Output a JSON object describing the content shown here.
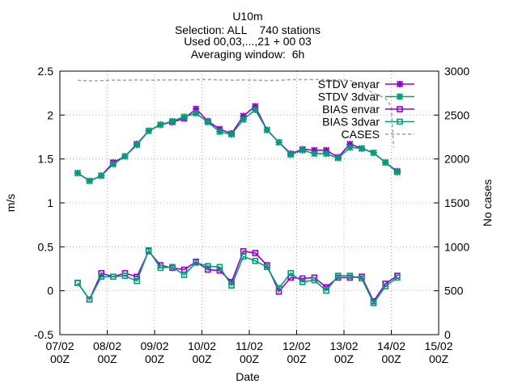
{
  "chart_data": {
    "type": "line",
    "title_lines": [
      "U10m",
      "Selection: ALL    740 stations",
      "Used 00,03,...,21 + 00 03",
      "Averaging window:  6h"
    ],
    "xlabel": "Date",
    "ylabel": "m/s",
    "y2label": "No cases",
    "x_ticks": [
      {
        "line1": "07/02",
        "line2": "00Z",
        "day": 0
      },
      {
        "line1": "08/02",
        "line2": "00Z",
        "day": 1
      },
      {
        "line1": "09/02",
        "line2": "00Z",
        "day": 2
      },
      {
        "line1": "10/02",
        "line2": "00Z",
        "day": 3
      },
      {
        "line1": "11/02",
        "line2": "00Z",
        "day": 4
      },
      {
        "line1": "12/02",
        "line2": "00Z",
        "day": 5
      },
      {
        "line1": "13/02",
        "line2": "00Z",
        "day": 6
      },
      {
        "line1": "14/02",
        "line2": "00Z",
        "day": 7
      },
      {
        "line1": "15/02",
        "line2": "00Z",
        "day": 8
      }
    ],
    "xlim": [
      0,
      8
    ],
    "ylim": [
      -0.5,
      2.5
    ],
    "y_ticks": [
      "-0.5",
      "0",
      "0.5",
      "1",
      "1.5",
      "2",
      "2.5"
    ],
    "y2lim": [
      0,
      3000
    ],
    "y2_ticks": [
      "0",
      "500",
      "1000",
      "1500",
      "2000",
      "2500",
      "3000"
    ],
    "legend_position": "top-right",
    "x_days": [
      0.375,
      0.625,
      0.875,
      1.125,
      1.375,
      1.625,
      1.875,
      2.125,
      2.375,
      2.625,
      2.875,
      3.125,
      3.375,
      3.625,
      3.875,
      4.125,
      4.375,
      4.625,
      4.875,
      5.125,
      5.375,
      5.625,
      5.875,
      6.125,
      6.375,
      6.625,
      6.875,
      7.125
    ],
    "series": [
      {
        "name": "STDV envar",
        "axis": "y1",
        "color": "#9400d3",
        "marker": "star",
        "values": [
          1.34,
          1.25,
          1.31,
          1.46,
          1.53,
          1.67,
          1.82,
          1.89,
          1.92,
          1.96,
          2.07,
          1.93,
          1.84,
          1.79,
          1.99,
          2.1,
          1.83,
          1.69,
          1.56,
          1.61,
          1.6,
          1.6,
          1.52,
          1.67,
          1.62,
          1.57,
          1.46,
          1.36
        ]
      },
      {
        "name": "STDV 3dvar",
        "axis": "y1",
        "color": "#009e73",
        "marker": "star",
        "values": [
          1.34,
          1.25,
          1.31,
          1.44,
          1.53,
          1.66,
          1.82,
          1.89,
          1.93,
          1.98,
          2.02,
          1.92,
          1.81,
          1.78,
          1.95,
          2.06,
          1.83,
          1.69,
          1.55,
          1.6,
          1.56,
          1.56,
          1.51,
          1.63,
          1.62,
          1.57,
          1.46,
          1.35
        ]
      },
      {
        "name": "BIAS envar",
        "axis": "y1",
        "color": "#9400d3",
        "marker": "square",
        "values": [
          0.09,
          -0.1,
          0.2,
          0.16,
          0.2,
          0.16,
          0.45,
          0.29,
          0.26,
          0.24,
          0.33,
          0.24,
          0.23,
          0.1,
          0.45,
          0.43,
          0.29,
          -0.01,
          0.15,
          0.14,
          0.15,
          0.04,
          0.15,
          0.15,
          0.16,
          -0.12,
          0.08,
          0.17
        ]
      },
      {
        "name": "BIAS 3dvar",
        "axis": "y1",
        "color": "#009e73",
        "marker": "square",
        "values": [
          0.09,
          -0.1,
          0.16,
          0.16,
          0.17,
          0.11,
          0.46,
          0.26,
          0.27,
          0.18,
          0.32,
          0.28,
          0.27,
          0.06,
          0.39,
          0.34,
          0.27,
          0.03,
          0.2,
          0.1,
          0.12,
          0.0,
          0.17,
          0.17,
          0.14,
          -0.14,
          0.05,
          0.15
        ]
      }
    ],
    "cases": {
      "name": "CASES",
      "axis": "y2",
      "color": "#a0a0a0",
      "dash": "dashed",
      "x_days": [
        0.375,
        0.625,
        0.875,
        1.125,
        1.375,
        1.625,
        1.875,
        2.125,
        2.375,
        2.625,
        2.875,
        3.125,
        3.375,
        3.625,
        3.875,
        4.125,
        4.375,
        4.625,
        4.875,
        5.125,
        5.375,
        5.625,
        5.875,
        6.125,
        6.375,
        6.625,
        6.875,
        7.0,
        7.05
      ],
      "values": [
        2895,
        2890,
        2892,
        2898,
        2896,
        2900,
        2897,
        2899,
        2901,
        2898,
        2903,
        2904,
        2900,
        2897,
        2900,
        2898,
        2893,
        2896,
        2902,
        2903,
        2904,
        2902,
        2900,
        2897,
        2820,
        2750,
        2690,
        2600,
        2130
      ]
    }
  }
}
